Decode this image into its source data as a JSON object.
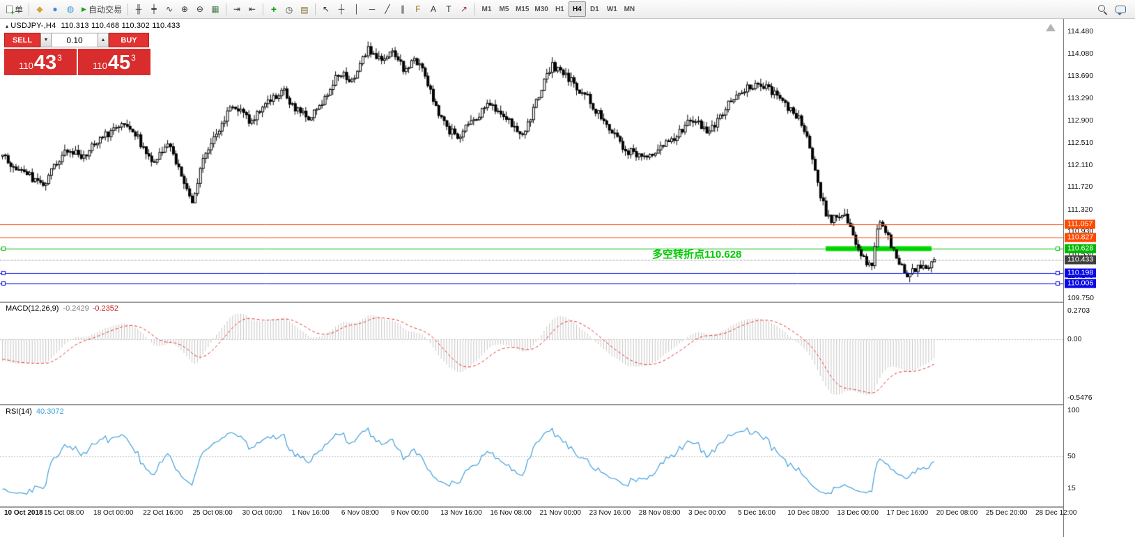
{
  "toolbar": {
    "new_order_label": "单",
    "autotrading_label": "自动交易",
    "window_buttons": [
      {
        "name": "new-chart-button",
        "glyph": "◆",
        "color": "#d8a23a"
      },
      {
        "name": "profiles-button",
        "glyph": "●",
        "color": "#4a86d8"
      },
      {
        "name": "data-window-button",
        "glyph": "◍",
        "color": "#3aa0c8"
      }
    ],
    "chart_buttons": [
      {
        "name": "bar-chart-button",
        "glyph": "╫",
        "color": "#333333"
      },
      {
        "name": "candlestick-button",
        "glyph": "┿",
        "color": "#333333"
      },
      {
        "name": "line-chart-button",
        "glyph": "∿",
        "color": "#333333"
      },
      {
        "name": "zoom-in-button",
        "glyph": "⊕",
        "color": "#333333"
      },
      {
        "name": "zoom-out-button",
        "glyph": "⊖",
        "color": "#333333"
      },
      {
        "name": "tile-windows-button",
        "glyph": "▦",
        "color": "#4a7a4a"
      }
    ],
    "scroll_buttons": [
      {
        "name": "auto-scroll-button",
        "glyph": "⇥",
        "color": "#333333"
      },
      {
        "name": "chart-shift-button",
        "glyph": "⇤",
        "color": "#333333"
      }
    ],
    "insert_buttons": [
      {
        "name": "indicators-button",
        "glyph": "+",
        "color": "#0d9d0d"
      },
      {
        "name": "periods-button",
        "glyph": "◷",
        "color": "#333333"
      },
      {
        "name": "templates-button",
        "glyph": "▤",
        "color": "#846a28"
      }
    ],
    "line_study_buttons": [
      {
        "name": "cursor-button",
        "glyph": "↖",
        "color": "#333333"
      },
      {
        "name": "crosshair-button",
        "glyph": "┼",
        "color": "#333333"
      },
      {
        "name": "vertical-line-button",
        "glyph": "│",
        "color": "#333333"
      },
      {
        "name": "horizontal-line-button",
        "glyph": "─",
        "color": "#333333"
      },
      {
        "name": "trendline-button",
        "glyph": "╱",
        "color": "#333333"
      },
      {
        "name": "channel-button",
        "glyph": "∥",
        "color": "#333333"
      },
      {
        "name": "fibonacci-button",
        "glyph": "F",
        "color": "#9a7d20"
      },
      {
        "name": "text-button",
        "glyph": "A",
        "color": "#333333"
      },
      {
        "name": "label-button",
        "glyph": "T",
        "color": "#333333"
      },
      {
        "name": "arrows-button",
        "glyph": "↗",
        "color": "#aa3333"
      }
    ],
    "timeframes": {
      "items": [
        "M1",
        "M5",
        "M15",
        "M30",
        "H1",
        "H4",
        "D1",
        "W1",
        "MN"
      ],
      "active": "H4"
    }
  },
  "chart": {
    "symbol_label": "USDJPY-,H4",
    "ohlc_label": "110.313 110.468 110.302 110.433",
    "annotation": {
      "text": "多空转折点110.628",
      "color": "#00ca00"
    },
    "trade_panel": {
      "sell_label": "SELL",
      "buy_label": "BUY",
      "volume": "0.10",
      "spin_down": "▼",
      "spin_up": "▲",
      "sell_price": {
        "prefix": "110",
        "big": "43",
        "sup": "3"
      },
      "buy_price": {
        "prefix": "110",
        "big": "45",
        "sup": "3"
      }
    }
  },
  "price_axis": {
    "line_labels": [
      {
        "label": "111.057",
        "price": 111.057,
        "bg": "#ff4a00",
        "fg": "#ffffff"
      },
      {
        "label": "110.827",
        "price": 110.827,
        "bg": "#ff4a00",
        "fg": "#ffffff"
      },
      {
        "label": "110.628",
        "price": 110.628,
        "bg": "#00b800",
        "fg": "#ffffff"
      },
      {
        "label": "110.433",
        "price": 110.433,
        "bg": "#404040",
        "fg": "#ffffff"
      },
      {
        "label": "110.198",
        "price": 110.198,
        "bg": "#0808e8",
        "fg": "#ffffff"
      },
      {
        "label": "110.006",
        "price": 110.006,
        "bg": "#0808e8",
        "fg": "#ffffff"
      }
    ]
  },
  "indicators": {
    "macd": {
      "name": "MACD(12,26,9)",
      "value_main": "-0.2429",
      "value_signal": "-0.2352",
      "axis": [
        {
          "label": "0.2703",
          "v": 0.2703
        },
        {
          "label": "0.00",
          "v": 0
        },
        {
          "label": "-0.5476",
          "v": -0.5476
        }
      ]
    },
    "rsi": {
      "name": "RSI(14)",
      "value": "40.3072",
      "axis": [
        {
          "label": "100",
          "v": 100
        },
        {
          "label": "50",
          "v": 50
        },
        {
          "label": "15",
          "v": 15
        }
      ]
    }
  },
  "chart_data": {
    "type": "candlestick",
    "symbol": "USDJPY",
    "timeframe": "H4",
    "current_bar": {
      "open": 110.313,
      "high": 110.468,
      "low": 110.302,
      "close": 110.433
    },
    "bid": "110.433",
    "ask": "110.453",
    "bars": 345,
    "y_axis": {
      "min": 109.75,
      "max": 114.68,
      "ticks": [
        {
          "label": "114.480",
          "price": 114.48
        },
        {
          "label": "114.080",
          "price": 114.08
        },
        {
          "label": "113.690",
          "price": 113.69
        },
        {
          "label": "113.290",
          "price": 113.29
        },
        {
          "label": "112.900",
          "price": 112.9
        },
        {
          "label": "112.510",
          "price": 112.51
        },
        {
          "label": "112.110",
          "price": 112.11
        },
        {
          "label": "111.720",
          "price": 111.72
        },
        {
          "label": "111.320",
          "price": 111.32
        },
        {
          "label": "110.930",
          "price": 110.93
        },
        {
          "label": "110.530",
          "price": 110.53
        },
        {
          "label": "110.140",
          "price": 110.14
        },
        {
          "label": "109.750",
          "price": 109.75
        }
      ]
    },
    "x_axis": {
      "labels": [
        "10 Oct 2018",
        "15 Oct 08:00",
        "18 Oct 00:00",
        "22 Oct 16:00",
        "25 Oct 08:00",
        "30 Oct 00:00",
        "1 Nov 16:00",
        "6 Nov 08:00",
        "9 Nov 00:00",
        "13 Nov 16:00",
        "16 Nov 08:00",
        "21 Nov 00:00",
        "23 Nov 16:00",
        "28 Nov 08:00",
        "3 Dec 00:00",
        "5 Dec 16:00",
        "10 Dec 08:00",
        "13 Dec 00:00",
        "17 Dec 16:00",
        "20 Dec 08:00",
        "25 Dec 20:00",
        "28 Dec 12:00"
      ]
    },
    "levels": [
      {
        "price": 111.057,
        "color": "#ff4a00",
        "type": "resistance-line"
      },
      {
        "price": 110.827,
        "color": "#ff4a00",
        "type": "resistance-line"
      },
      {
        "price": 110.628,
        "color": "#00b800",
        "type": "pivot-line",
        "selected": true,
        "thick_segment_x": [
          1185,
          1337
        ]
      },
      {
        "price": 110.433,
        "color": "#8a8a8a",
        "type": "bid-line"
      },
      {
        "price": 110.198,
        "color": "#0808e8",
        "type": "support-line",
        "selected": true
      },
      {
        "price": 110.006,
        "color": "#0808e8",
        "type": "support-line",
        "selected": true
      }
    ],
    "indicator_panels": [
      {
        "type": "MACD",
        "fast": 12,
        "slow": 26,
        "signal": 9,
        "current": [
          -0.2429,
          -0.2352
        ],
        "scale_max": 0.2703,
        "scale_min": -0.5476
      },
      {
        "type": "RSI",
        "period": 14,
        "current": 40.3072,
        "scale": [
          0,
          100
        ]
      }
    ],
    "annotation": "多空转折点110.628",
    "price_path_waypoints": [
      [
        0.0,
        112.3
      ],
      [
        0.01,
        112.1
      ],
      [
        0.03,
        111.9
      ],
      [
        0.045,
        111.78
      ],
      [
        0.058,
        112.18
      ],
      [
        0.071,
        112.42
      ],
      [
        0.085,
        112.25
      ],
      [
        0.1,
        112.5
      ],
      [
        0.118,
        112.72
      ],
      [
        0.13,
        112.88
      ],
      [
        0.145,
        112.6
      ],
      [
        0.16,
        112.1
      ],
      [
        0.172,
        112.35
      ],
      [
        0.18,
        112.48
      ],
      [
        0.192,
        111.9
      ],
      [
        0.203,
        111.38
      ],
      [
        0.215,
        112.2
      ],
      [
        0.232,
        112.7
      ],
      [
        0.246,
        113.2
      ],
      [
        0.258,
        113.02
      ],
      [
        0.265,
        112.88
      ],
      [
        0.285,
        113.2
      ],
      [
        0.3,
        113.45
      ],
      [
        0.315,
        113.08
      ],
      [
        0.33,
        112.92
      ],
      [
        0.345,
        113.25
      ],
      [
        0.36,
        113.75
      ],
      [
        0.375,
        113.6
      ],
      [
        0.392,
        114.18
      ],
      [
        0.4,
        114.0
      ],
      [
        0.41,
        114.05
      ],
      [
        0.418,
        114.15
      ],
      [
        0.426,
        113.92
      ],
      [
        0.433,
        113.78
      ],
      [
        0.441,
        113.95
      ],
      [
        0.448,
        113.9
      ],
      [
        0.46,
        113.4
      ],
      [
        0.47,
        112.95
      ],
      [
        0.48,
        112.72
      ],
      [
        0.49,
        112.62
      ],
      [
        0.505,
        112.9
      ],
      [
        0.522,
        113.22
      ],
      [
        0.535,
        113.05
      ],
      [
        0.545,
        112.88
      ],
      [
        0.558,
        112.58
      ],
      [
        0.57,
        113.1
      ],
      [
        0.582,
        113.65
      ],
      [
        0.59,
        113.88
      ],
      [
        0.604,
        113.72
      ],
      [
        0.615,
        113.5
      ],
      [
        0.628,
        113.3
      ],
      [
        0.645,
        112.88
      ],
      [
        0.658,
        112.6
      ],
      [
        0.668,
        112.38
      ],
      [
        0.68,
        112.3
      ],
      [
        0.694,
        112.25
      ],
      [
        0.705,
        112.42
      ],
      [
        0.72,
        112.58
      ],
      [
        0.733,
        112.82
      ],
      [
        0.74,
        112.95
      ],
      [
        0.75,
        112.8
      ],
      [
        0.757,
        112.68
      ],
      [
        0.77,
        112.95
      ],
      [
        0.782,
        113.25
      ],
      [
        0.79,
        113.38
      ],
      [
        0.8,
        113.48
      ],
      [
        0.81,
        113.55
      ],
      [
        0.82,
        113.48
      ],
      [
        0.832,
        113.3
      ],
      [
        0.845,
        113.1
      ],
      [
        0.858,
        112.85
      ],
      [
        0.868,
        112.35
      ],
      [
        0.877,
        111.6
      ],
      [
        0.884,
        111.25
      ],
      [
        0.89,
        111.12
      ],
      [
        0.898,
        111.25
      ],
      [
        0.905,
        111.18
      ],
      [
        0.912,
        110.95
      ],
      [
        0.92,
        110.55
      ],
      [
        0.928,
        110.38
      ],
      [
        0.933,
        110.28
      ],
      [
        0.938,
        110.85
      ],
      [
        0.941,
        111.15
      ],
      [
        0.945,
        111.05
      ],
      [
        0.95,
        110.85
      ],
      [
        0.956,
        110.6
      ],
      [
        0.962,
        110.35
      ],
      [
        0.968,
        110.22
      ],
      [
        0.973,
        110.18
      ],
      [
        0.979,
        110.28
      ],
      [
        0.985,
        110.35
      ],
      [
        0.991,
        110.3
      ],
      [
        1.0,
        110.43
      ]
    ]
  }
}
